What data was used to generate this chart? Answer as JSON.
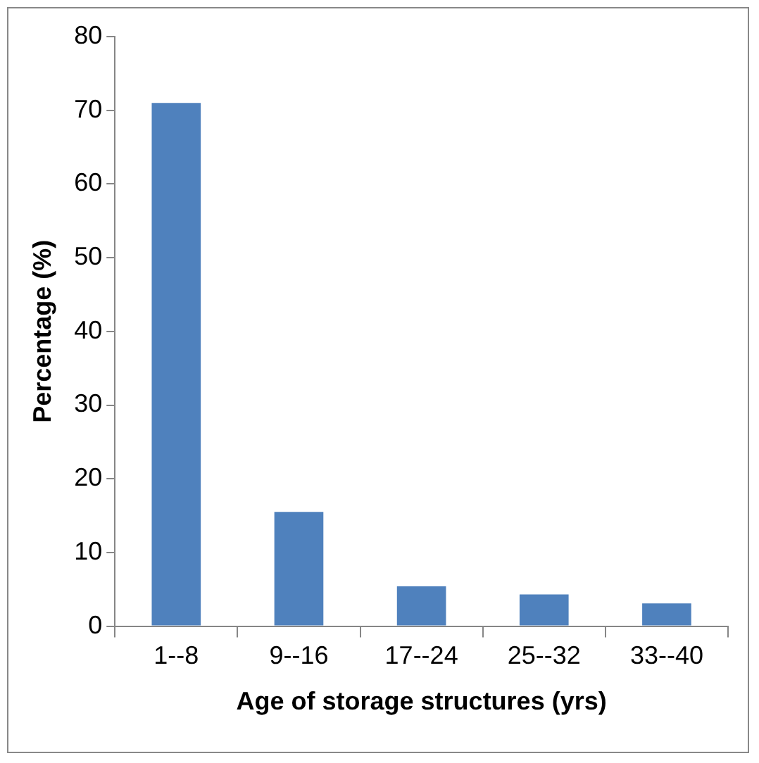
{
  "chart_data": {
    "type": "bar",
    "xlabel": "Age of storage structures (yrs)",
    "ylabel": "Percentage (%)",
    "categories": [
      "1--8",
      "9--16",
      "17--24",
      "25--32",
      "33--40"
    ],
    "values": [
      71.0,
      15.5,
      5.4,
      4.3,
      3.1
    ],
    "color": "#4f81bd",
    "ylim": [
      0,
      80
    ],
    "yticks": [
      0,
      10,
      20,
      30,
      40,
      50,
      60,
      70,
      80
    ],
    "grid": false,
    "legend": false
  }
}
